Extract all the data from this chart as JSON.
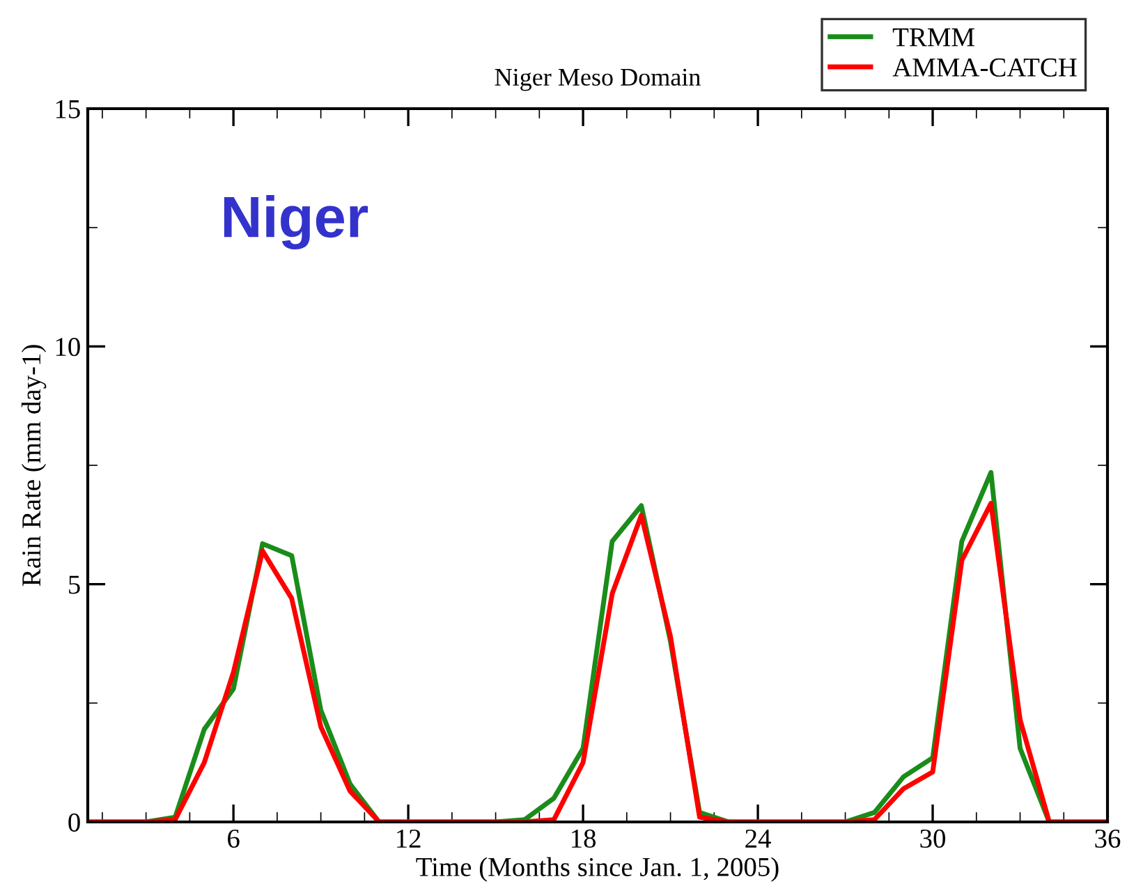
{
  "chart_data": {
    "type": "line",
    "title": "Niger Meso Domain",
    "xlabel": "Time (Months since Jan. 1, 2005)",
    "ylabel": "Rain Rate (mm day-1)",
    "annotations": [
      "Niger"
    ],
    "x": [
      1,
      2,
      3,
      4,
      5,
      6,
      7,
      8,
      9,
      10,
      11,
      12,
      13,
      14,
      15,
      16,
      17,
      18,
      19,
      20,
      21,
      22,
      23,
      24,
      25,
      26,
      27,
      28,
      29,
      30,
      31,
      32,
      33,
      34,
      35,
      36
    ],
    "series": [
      {
        "name": "TRMM",
        "color": "#1a8c1a",
        "values": [
          0,
          0,
          0,
          0.1,
          1.95,
          2.8,
          5.85,
          5.6,
          2.35,
          0.8,
          0,
          0,
          0,
          0,
          0,
          0.05,
          0.5,
          1.55,
          5.9,
          6.65,
          3.8,
          0.2,
          0,
          0,
          0,
          0,
          0,
          0.2,
          0.95,
          1.35,
          5.9,
          7.35,
          1.55,
          0,
          0,
          0
        ]
      },
      {
        "name": "AMMA-CATCH",
        "color": "#ff0000",
        "values": [
          0,
          0,
          0,
          0.05,
          1.25,
          3.15,
          5.7,
          4.7,
          2.0,
          0.65,
          0,
          0,
          0,
          0,
          0,
          0,
          0.05,
          1.25,
          4.8,
          6.45,
          3.9,
          0.1,
          0,
          0,
          0,
          0,
          0,
          0.05,
          0.7,
          1.05,
          5.5,
          6.7,
          2.15,
          0,
          0,
          0
        ]
      }
    ],
    "xlim": [
      1,
      36
    ],
    "xticks": [
      {
        "value": 1.5,
        "label": null
      },
      {
        "value": 3,
        "label": null
      },
      {
        "value": 4.5,
        "label": null
      },
      6,
      {
        "value": 7.5,
        "label": null
      },
      {
        "value": 9,
        "label": null
      },
      {
        "value": 10.5,
        "label": null
      },
      12,
      {
        "value": 13.5,
        "label": null
      },
      {
        "value": 15,
        "label": null
      },
      {
        "value": 16.5,
        "label": null
      },
      18,
      {
        "value": 19.5,
        "label": null
      },
      {
        "value": 21,
        "label": null
      },
      {
        "value": 22.5,
        "label": null
      },
      24,
      {
        "value": 25.5,
        "label": null
      },
      {
        "value": 27,
        "label": null
      },
      {
        "value": 28.5,
        "label": null
      },
      30,
      {
        "value": 31.5,
        "label": null
      },
      {
        "value": 33,
        "label": null
      },
      {
        "value": 34.5,
        "label": null
      },
      36
    ],
    "ylim": [
      0,
      15
    ],
    "yticks": [
      0,
      {
        "value": 2.5,
        "label": null
      },
      5,
      {
        "value": 7.5,
        "label": null
      },
      10,
      {
        "value": 12.5,
        "label": null
      },
      15
    ],
    "grid": false,
    "legend": "top right",
    "marker": "none",
    "line_style": "solid"
  }
}
